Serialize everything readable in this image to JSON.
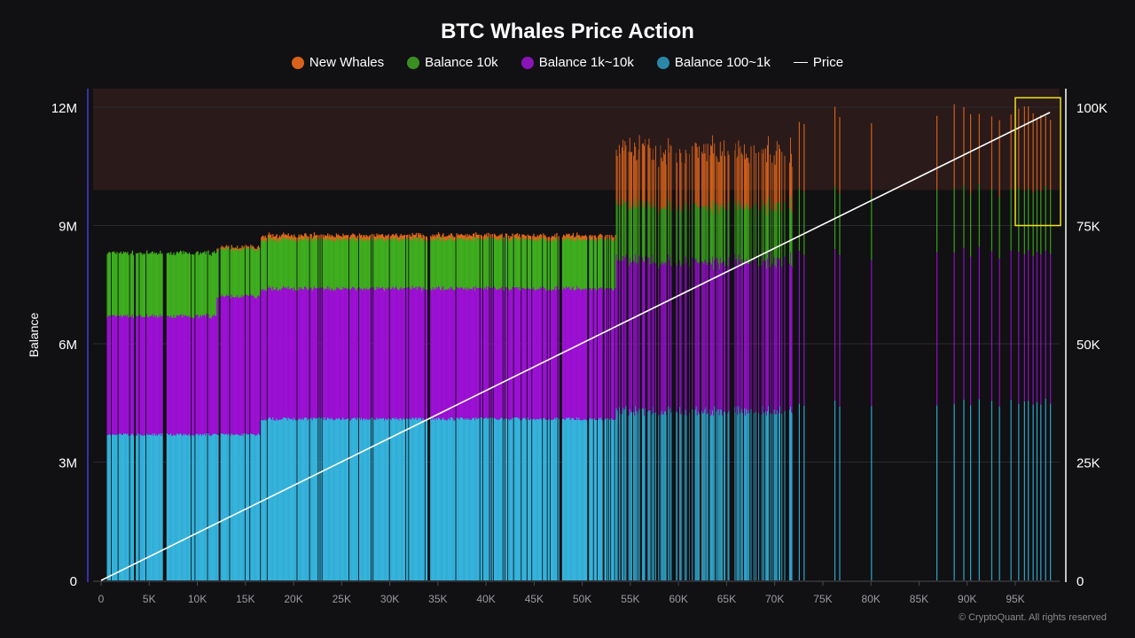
{
  "chart_data": {
    "type": "bar",
    "stacked": true,
    "title": "BTC Whales Price Action",
    "xlabel": "",
    "ylabel": "Balance",
    "y2label": "",
    "xlim": [
      0,
      100000
    ],
    "ylim": [
      0,
      12500000
    ],
    "y2lim": [
      0,
      104000
    ],
    "x_ticks": [
      "0",
      "5K",
      "10K",
      "15K",
      "20K",
      "25K",
      "30K",
      "35K",
      "40K",
      "45K",
      "50K",
      "55K",
      "60K",
      "65K",
      "70K",
      "75K",
      "80K",
      "85K",
      "90K",
      "95K"
    ],
    "x_tick_values": [
      0,
      5000,
      10000,
      15000,
      20000,
      25000,
      30000,
      35000,
      40000,
      45000,
      50000,
      55000,
      60000,
      65000,
      70000,
      75000,
      80000,
      85000,
      90000,
      95000
    ],
    "y_ticks": [
      "0",
      "3M",
      "6M",
      "9M",
      "12M"
    ],
    "y_tick_values": [
      0,
      3000000,
      6000000,
      9000000,
      12000000
    ],
    "y2_ticks": [
      "0",
      "25K",
      "50K",
      "75K",
      "100K"
    ],
    "y2_tick_values": [
      0,
      25000,
      50000,
      75000,
      100000
    ],
    "grid": true,
    "legend_position": "top-center",
    "legend": [
      {
        "name": "New Whales",
        "color": "#d8621c",
        "kind": "dot"
      },
      {
        "name": "Balance 10k",
        "color": "#3a8f22",
        "kind": "dot"
      },
      {
        "name": "Balance 1k~10k",
        "color": "#8a14b8",
        "kind": "dot"
      },
      {
        "name": "Balance 100~1k",
        "color": "#2b87a8",
        "kind": "dot"
      },
      {
        "name": "Price",
        "color": "#ffffff",
        "kind": "line"
      }
    ],
    "series_colors": {
      "new_whales": "#e0661b",
      "balance_10k": "#3fae1f",
      "balance_1k_10k": "#9c10d4",
      "balance_100_1k": "#35b3dc",
      "price": "#ffffff"
    },
    "stack_segments": [
      {
        "x_range": [
          500,
          12000
        ],
        "balance_100_1k": 3700000,
        "balance_1k_10k": 3000000,
        "balance_10k": 1600000,
        "new_whales": 0
      },
      {
        "x_range": [
          12000,
          16500
        ],
        "balance_100_1k": 3700000,
        "balance_1k_10k": 3500000,
        "balance_10k": 1200000,
        "new_whales": 50000
      },
      {
        "x_range": [
          16500,
          53500
        ],
        "balance_100_1k": 4100000,
        "balance_1k_10k": 3300000,
        "balance_10k": 1250000,
        "new_whales": 100000
      },
      {
        "x_range": [
          53500,
          72000
        ],
        "balance_100_1k": 4300000,
        "balance_1k_10k": 3800000,
        "balance_10k": 1400000,
        "new_whales": 1400000
      }
    ],
    "sparse_bars": {
      "x": [
        72500,
        73000,
        76200,
        76700,
        80000,
        86800,
        88600,
        89600,
        90300,
        91200,
        92500,
        93300,
        94500,
        95300,
        95900,
        96300,
        96800,
        97200,
        97600,
        98100,
        98600
      ],
      "balance_100_1k": 4500000,
      "balance_1k_10k": 3800000,
      "balance_10k": 1600000,
      "new_whales": 1900000
    },
    "price_line": {
      "x": [
        0,
        98600
      ],
      "y": [
        0,
        98900
      ]
    },
    "shaded_band": {
      "y_range": [
        9900000,
        12500000
      ],
      "color": "#2a1a1a"
    },
    "highlight_box": {
      "x_range": [
        95000,
        99700
      ],
      "y2_range": [
        75000,
        102000
      ],
      "color": "#f2e21a"
    }
  },
  "footer": "© CryptoQuant. All rights reserved"
}
